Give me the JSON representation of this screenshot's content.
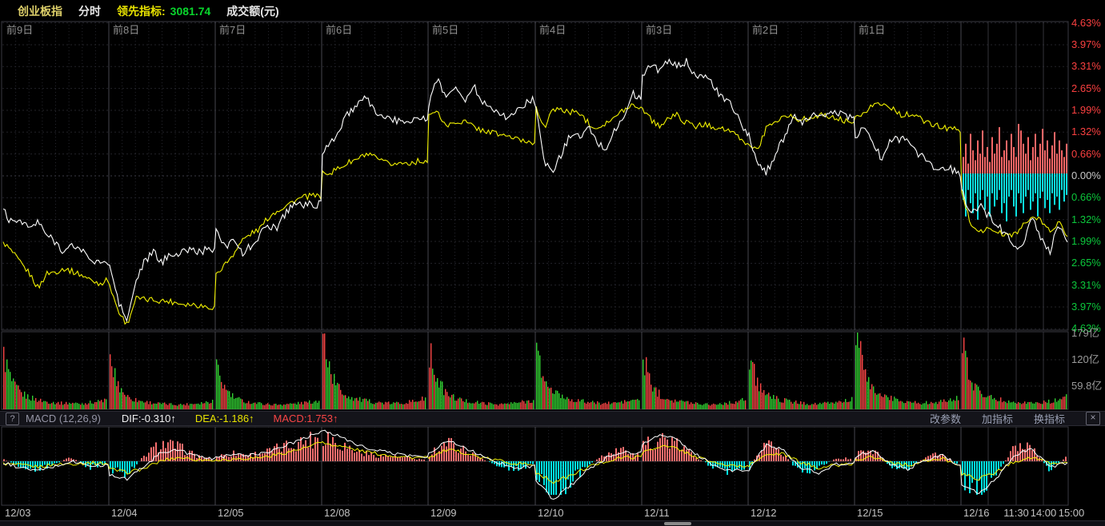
{
  "header": {
    "symbol": "创业板指",
    "mode": "分时",
    "leading_label": "领先指标:",
    "leading_value": "3081.74",
    "amount_label": "成交额(元)"
  },
  "macd_toolbar": {
    "help": "?",
    "name": "MACD (12,26,9)",
    "dif": "DIF:-0.310↑",
    "dea": "DEA:-1.186↑",
    "macd": "MACD:1.753↑",
    "buttons": [
      "改参数",
      "加指标",
      "换指标"
    ],
    "close": "×"
  },
  "colors": {
    "price_line": "#ffffff",
    "avg_line": "#f2f200",
    "up": "#fa4545",
    "down": "#32d132",
    "macd_up_fill": "#f76e6e",
    "macd_down_fill": "#00e2e2",
    "lead_up": "#fa6666",
    "lead_down": "#0ce0e0"
  },
  "chart_data": {
    "type": "line",
    "panels": [
      "price_percent",
      "volume",
      "macd"
    ],
    "dates": [
      "12/03",
      "12/04",
      "12/05",
      "12/08",
      "12/09",
      "12/10",
      "12/11",
      "12/12",
      "12/15",
      "12/16"
    ],
    "day_labels": [
      "前9日",
      "前8日",
      "前7日",
      "前6日",
      "前5日",
      "前4日",
      "前3日",
      "前2日",
      "前1日"
    ],
    "time_labels": [
      "11:30",
      "14:00",
      "15:00"
    ],
    "y_axis_percent_labels": [
      "4.63%",
      "3.97%",
      "3.31%",
      "2.65%",
      "1.99%",
      "1.32%",
      "0.66%",
      "0.00%",
      "0.66%",
      "1.32%",
      "1.99%",
      "2.65%",
      "3.31%",
      "3.97%",
      "4.63%"
    ],
    "y_axis_range_percent": [
      -4.63,
      4.63
    ],
    "volume_axis_labels": [
      "179亿",
      "120亿",
      "59.8亿"
    ],
    "price": {
      "white_pct_by_day": [
        [
          -1.0,
          -1.45,
          -1.3,
          -1.6,
          -1.4,
          -1.8,
          -2.0,
          -2.3,
          -2.1,
          -2.25,
          -2.5,
          -2.65,
          -2.7
        ],
        [
          -2.7,
          -3.8,
          -4.4,
          -3.2,
          -2.6,
          -2.3,
          -2.65,
          -2.3,
          -2.4,
          -2.2,
          -2.3,
          -2.25,
          -2.2
        ],
        [
          -1.6,
          -2.2,
          -1.8,
          -2.4,
          -2.1,
          -1.8,
          -1.5,
          -1.55,
          -1.1,
          -0.8,
          -0.9,
          -0.85,
          -0.87
        ],
        [
          0.65,
          1.0,
          1.45,
          1.9,
          2.1,
          2.4,
          1.95,
          1.8,
          1.7,
          1.62,
          1.7,
          1.74,
          1.7
        ],
        [
          2.1,
          3.05,
          2.3,
          2.8,
          2.2,
          2.75,
          2.3,
          2.1,
          1.95,
          1.7,
          2.0,
          2.2,
          2.3
        ],
        [
          2.05,
          0.3,
          0.2,
          0.7,
          1.3,
          1.15,
          1.45,
          1.0,
          0.8,
          1.4,
          1.7,
          2.5,
          2.3
        ],
        [
          3.05,
          3.35,
          3.2,
          3.45,
          3.3,
          3.45,
          3.1,
          3.0,
          2.8,
          2.35,
          2.2,
          1.75,
          1.2
        ],
        [
          1.3,
          0.3,
          0.1,
          0.65,
          1.15,
          1.8,
          1.55,
          1.75,
          1.9,
          1.8,
          1.93,
          1.85,
          1.74
        ],
        [
          1.15,
          1.45,
          1.05,
          0.5,
          1.15,
          1.1,
          1.15,
          0.65,
          0.55,
          0.25,
          0.15,
          0.2,
          0.05
        ],
        [
          -0.4,
          -1.2,
          -0.9,
          -1.2,
          -1.45,
          -1.76,
          -2.2,
          -2.05,
          -1.3,
          -1.85,
          -2.3,
          -1.45,
          -1.95
        ]
      ],
      "yellow_pct_by_day": [
        [
          -2.0,
          -2.3,
          -2.65,
          -2.95,
          -3.4,
          -2.95,
          -2.9,
          -2.8,
          -2.9,
          -3.0,
          -3.15,
          -3.25,
          -3.15
        ],
        [
          -3.3,
          -4.1,
          -4.5,
          -3.7,
          -3.75,
          -3.75,
          -3.78,
          -3.8,
          -3.85,
          -3.88,
          -3.9,
          -3.95,
          -3.98
        ],
        [
          -2.95,
          -2.7,
          -2.35,
          -1.95,
          -1.75,
          -1.6,
          -1.25,
          -1.05,
          -0.9,
          -0.75,
          -0.65,
          -0.6,
          -0.63
        ],
        [
          0.15,
          0.1,
          0.25,
          0.4,
          0.5,
          0.65,
          0.55,
          0.4,
          0.36,
          0.38,
          0.4,
          0.44,
          0.46
        ],
        [
          1.86,
          1.9,
          1.5,
          1.62,
          1.65,
          1.5,
          1.38,
          1.33,
          1.25,
          1.21,
          1.1,
          1.05,
          1.0
        ],
        [
          2.1,
          1.45,
          2.05,
          1.98,
          1.93,
          1.91,
          1.6,
          1.45,
          1.62,
          1.74,
          2.0,
          2.15,
          2.1
        ],
        [
          2.05,
          1.7,
          1.5,
          1.75,
          1.85,
          1.6,
          1.5,
          1.55,
          1.5,
          1.45,
          1.35,
          1.15,
          0.95
        ],
        [
          0.95,
          0.77,
          1.45,
          1.67,
          1.8,
          1.79,
          1.7,
          1.74,
          1.85,
          1.79,
          1.74,
          1.67,
          1.62
        ],
        [
          1.8,
          1.93,
          2.15,
          2.17,
          2.1,
          1.86,
          1.86,
          1.8,
          1.62,
          1.55,
          1.45,
          1.45,
          1.38
        ],
        [
          -0.48,
          -1.45,
          -1.69,
          -1.6,
          -1.69,
          -1.8,
          -1.76,
          -1.5,
          -1.25,
          -1.35,
          -1.69,
          -1.4,
          -1.84
        ]
      ]
    },
    "volume_yi_by_day": [
      [
        125,
        60,
        38,
        28,
        22,
        18,
        16,
        14,
        15,
        13,
        16,
        18,
        22
      ],
      [
        110,
        55,
        30,
        22,
        18,
        15,
        13,
        12,
        11,
        12,
        14,
        16,
        20
      ],
      [
        95,
        48,
        28,
        20,
        16,
        14,
        12,
        11,
        12,
        13,
        15,
        17,
        21
      ],
      [
        175,
        80,
        45,
        30,
        24,
        20,
        17,
        15,
        14,
        15,
        17,
        20,
        26
      ],
      [
        135,
        65,
        36,
        26,
        20,
        17,
        15,
        13,
        12,
        13,
        15,
        18,
        22
      ],
      [
        130,
        62,
        40,
        30,
        24,
        20,
        17,
        15,
        14,
        15,
        17,
        20,
        24
      ],
      [
        120,
        58,
        34,
        25,
        20,
        17,
        15,
        13,
        12,
        13,
        15,
        18,
        23
      ],
      [
        125,
        60,
        36,
        26,
        21,
        18,
        15,
        13,
        13,
        14,
        16,
        19,
        24
      ],
      [
        178,
        85,
        48,
        34,
        26,
        22,
        18,
        16,
        15,
        16,
        18,
        21,
        26
      ],
      [
        150,
        70,
        42,
        30,
        24,
        20,
        18,
        16,
        15,
        16,
        18,
        22,
        28
      ]
    ],
    "volume_open_spike_colors": [
      "up",
      "up",
      "down",
      "up",
      "up",
      "down",
      "down",
      "down",
      "down",
      "up"
    ],
    "macd": {
      "hist_by_day": [
        [
          2,
          -6,
          -10,
          -4,
          6,
          -8,
          -4
        ],
        [
          -10,
          -16,
          6,
          22,
          18,
          8,
          2
        ],
        [
          6,
          10,
          8,
          12,
          18,
          24,
          30
        ],
        [
          34,
          22,
          12,
          8,
          6,
          4,
          2
        ],
        [
          10,
          24,
          14,
          4,
          -6,
          -10,
          -4
        ],
        [
          -20,
          -44,
          -24,
          -6,
          8,
          14,
          10
        ],
        [
          18,
          30,
          20,
          8,
          -6,
          -12,
          -8
        ],
        [
          -8,
          26,
          10,
          -14,
          -8,
          2,
          4
        ],
        [
          8,
          16,
          -6,
          -10,
          4,
          10,
          -4
        ],
        [
          -28,
          -36,
          -14,
          16,
          22,
          -10,
          4
        ]
      ],
      "dif_by_day": [
        [
          -2,
          -8,
          -12,
          -6,
          0,
          -6,
          -5
        ],
        [
          -16,
          -22,
          -6,
          12,
          14,
          6,
          2
        ],
        [
          4,
          8,
          8,
          12,
          20,
          28,
          38
        ],
        [
          40,
          30,
          20,
          14,
          10,
          7,
          5
        ],
        [
          10,
          26,
          18,
          6,
          -2,
          -8,
          -6
        ],
        [
          -24,
          -48,
          -30,
          -10,
          4,
          12,
          10
        ],
        [
          20,
          34,
          26,
          10,
          -4,
          -12,
          -10
        ],
        [
          -10,
          20,
          14,
          -10,
          -14,
          -4,
          -2
        ],
        [
          6,
          14,
          -4,
          -10,
          2,
          8,
          -6
        ],
        [
          -30,
          -40,
          -20,
          8,
          16,
          -8,
          -1
        ]
      ],
      "dea_by_day": [
        [
          -3,
          -5,
          -7,
          -4,
          -3,
          -2,
          -3
        ],
        [
          -10,
          -14,
          -9,
          1,
          5,
          2,
          1
        ],
        [
          1,
          3,
          4,
          6,
          11,
          16,
          23
        ],
        [
          23,
          19,
          14,
          10,
          7,
          5,
          4
        ],
        [
          5,
          14,
          11,
          4,
          1,
          -3,
          -4
        ],
        [
          -14,
          -26,
          -18,
          -7,
          0,
          5,
          5
        ],
        [
          11,
          19,
          16,
          6,
          -1,
          -6,
          -6
        ],
        [
          -5,
          8,
          9,
          -2,
          -8,
          -5,
          -3
        ],
        [
          2,
          6,
          -1,
          -5,
          0,
          3,
          -4
        ],
        [
          -16,
          -22,
          -13,
          0,
          5,
          -3,
          -2
        ]
      ]
    },
    "leading_bars": {
      "up_pct": [
        0.5,
        0.9,
        0.3,
        1.2,
        0.7,
        0.4,
        1.0,
        0.6,
        1.3,
        0.5,
        0.8,
        0.35,
        1.1,
        0.6,
        0.9,
        1.4,
        0.5,
        0.7,
        1.0,
        0.4,
        1.2,
        0.8,
        0.5,
        1.5,
        1.3,
        0.9,
        0.6,
        1.1,
        0.4,
        0.8,
        1.2,
        0.5,
        0.9,
        1.35,
        0.7,
        1.0,
        0.45,
        0.85,
        1.25,
        0.6,
        1.0,
        0.7,
        0.5,
        0.9
      ],
      "down_pct": [
        0.8,
        1.3,
        0.5,
        0.9,
        1.2,
        0.6,
        1.4,
        0.8,
        0.5,
        1.1,
        0.7,
        1.3,
        0.6,
        1.0,
        0.8,
        0.5,
        1.2,
        0.9,
        1.45,
        0.7,
        0.5,
        1.0,
        1.3,
        0.6,
        0.9,
        1.2,
        0.7,
        0.5,
        1.1,
        0.85,
        0.6,
        1.3,
        0.75,
        0.55,
        1.05,
        0.8,
        1.2,
        0.6,
        0.95,
        0.7,
        1.1,
        0.5,
        0.85,
        0.65
      ]
    }
  }
}
